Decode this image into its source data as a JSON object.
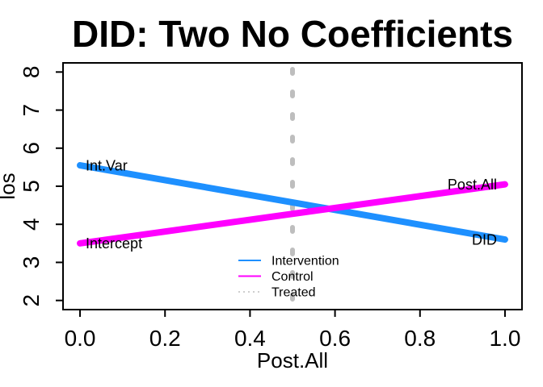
{
  "chart_data": {
    "type": "line",
    "title": "DID: Two No Coefficients",
    "xlabel": "Post.All",
    "ylabel": "los",
    "xlim": [
      0,
      1
    ],
    "ylim": [
      2,
      8
    ],
    "x_ticks": [
      {
        "value": 0.0,
        "label": "0.0"
      },
      {
        "value": 0.2,
        "label": "0.2"
      },
      {
        "value": 0.4,
        "label": "0.4"
      },
      {
        "value": 0.6,
        "label": "0.6"
      },
      {
        "value": 0.8,
        "label": "0.8"
      },
      {
        "value": 1.0,
        "label": "1.0"
      }
    ],
    "y_ticks": [
      {
        "value": 2,
        "label": "2"
      },
      {
        "value": 3,
        "label": "3"
      },
      {
        "value": 4,
        "label": "4"
      },
      {
        "value": 5,
        "label": "5"
      },
      {
        "value": 6,
        "label": "6"
      },
      {
        "value": 7,
        "label": "7"
      },
      {
        "value": 8,
        "label": "8"
      }
    ],
    "grid": false,
    "axis_color": "#000000",
    "series": [
      {
        "name": "Intervention",
        "color": "#1E90FF",
        "style": "solid",
        "x": [
          0,
          1
        ],
        "y": [
          5.55,
          3.6
        ],
        "start_label": "Int.Var",
        "end_label": "DID"
      },
      {
        "name": "Control",
        "color": "#FF00FF",
        "style": "solid",
        "x": [
          0,
          1
        ],
        "y": [
          3.5,
          5.05
        ],
        "start_label": "Intercept",
        "end_label": "Post.All"
      }
    ],
    "vline": {
      "name": "Treated",
      "x": 0.5,
      "color": "#BEBEBE",
      "style": "dotted"
    },
    "legend": {
      "position": "bottom-center",
      "border": false,
      "entries": [
        {
          "label": "Intervention",
          "color": "#1E90FF",
          "style": "solid"
        },
        {
          "label": "Control",
          "color": "#FF00FF",
          "style": "solid"
        },
        {
          "label": "Treated",
          "color": "#BEBEBE",
          "style": "dotted"
        }
      ]
    }
  }
}
